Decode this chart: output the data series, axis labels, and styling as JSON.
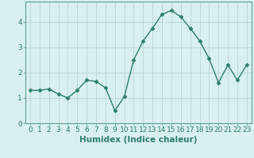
{
  "title": "",
  "xlabel": "Humidex (Indice chaleur)",
  "ylabel": "",
  "x": [
    0,
    1,
    2,
    3,
    4,
    5,
    6,
    7,
    8,
    9,
    10,
    11,
    12,
    13,
    14,
    15,
    16,
    17,
    18,
    19,
    20,
    21,
    22,
    23
  ],
  "y": [
    1.3,
    1.3,
    1.35,
    1.15,
    1.0,
    1.3,
    1.7,
    1.65,
    1.4,
    0.5,
    1.05,
    2.5,
    3.25,
    3.75,
    4.3,
    4.45,
    4.2,
    3.75,
    3.25,
    2.55,
    1.6,
    2.3,
    1.7,
    2.3
  ],
  "line_color": "#2e7d6e",
  "marker": "D",
  "marker_size": 2.5,
  "bg_color": "#d8f0ef",
  "grid_color": "#b8d8d4",
  "ylim": [
    0,
    4.8
  ],
  "xlim": [
    -0.5,
    23.5
  ],
  "yticks": [
    0,
    1,
    2,
    3,
    4
  ],
  "xticks": [
    0,
    1,
    2,
    3,
    4,
    5,
    6,
    7,
    8,
    9,
    10,
    11,
    12,
    13,
    14,
    15,
    16,
    17,
    18,
    19,
    20,
    21,
    22,
    23
  ],
  "tick_fontsize": 6.5,
  "xlabel_fontsize": 7.5,
  "label_color": "#2e7d6e",
  "spine_color": "#5a9e94"
}
